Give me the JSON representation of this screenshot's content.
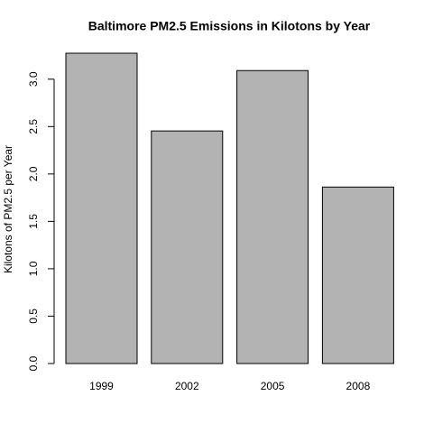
{
  "chart_data": {
    "type": "bar",
    "title": "Baltimore PM2.5 Emissions in Kilotons by Year",
    "y_label": "Kilotons of PM2.5 per Year",
    "categories": [
      "1999",
      "2002",
      "2005",
      "2008"
    ],
    "values": [
      3.274,
      2.454,
      3.091,
      1.862
    ],
    "color": "#b3b3b3",
    "ylim": [
      0,
      3.274
    ],
    "yticks": [
      {
        "value": 0,
        "label": "0.0"
      },
      0.5,
      {
        "value": 1,
        "label": "1.0"
      },
      1.5,
      {
        "value": 2,
        "label": "2.0"
      },
      2.5,
      {
        "value": 3,
        "label": "3.0"
      }
    ],
    "grid": false
  }
}
